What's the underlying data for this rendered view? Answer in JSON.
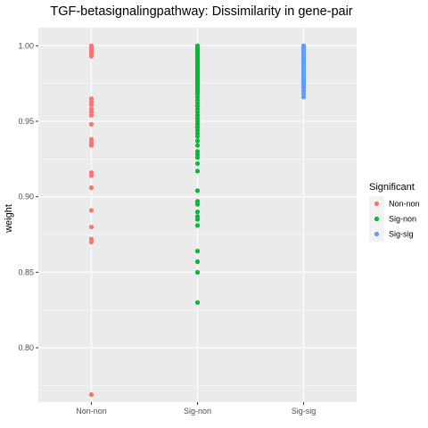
{
  "chart_data": {
    "type": "scatter",
    "title": "TGF-betasignalingpathway: Dissimilarity in gene-pair",
    "xlabel": "",
    "ylabel": "weight",
    "categories": [
      "Non-non",
      "Sig-non",
      "Sig-sig"
    ],
    "ylim": [
      0.764,
      1.012
    ],
    "yticks": [
      0.8,
      0.85,
      0.9,
      0.95,
      1.0
    ],
    "ytick_labels": [
      "0.80",
      "0.85",
      "0.90",
      "0.95",
      "1.00"
    ],
    "grid": true,
    "legend": {
      "title": "Significant",
      "position": "right",
      "entries": [
        "Non-non",
        "Sig-non",
        "Sig-sig"
      ]
    },
    "colors": {
      "Non-non": "#F8766D",
      "Sig-non": "#00BA38",
      "Sig-sig": "#619CFF",
      "panel": "#EBEBEB",
      "grid": "#FFFFFF"
    },
    "series": [
      {
        "name": "Non-non",
        "x": "Non-non",
        "values": [
          1.0,
          0.999,
          0.998,
          0.997,
          0.996,
          0.995,
          0.994,
          0.993,
          0.965,
          0.963,
          0.961,
          0.958,
          0.956,
          0.954,
          0.948,
          0.938,
          0.936,
          0.934,
          0.916,
          0.914,
          0.906,
          0.891,
          0.88,
          0.872,
          0.87,
          0.769
        ]
      },
      {
        "name": "Sig-non",
        "x": "Sig-non",
        "values": [
          1.0,
          0.999,
          0.998,
          0.997,
          0.996,
          0.995,
          0.994,
          0.993,
          0.992,
          0.991,
          0.99,
          0.989,
          0.988,
          0.987,
          0.986,
          0.985,
          0.984,
          0.983,
          0.982,
          0.981,
          0.98,
          0.979,
          0.978,
          0.977,
          0.976,
          0.975,
          0.974,
          0.973,
          0.972,
          0.971,
          0.97,
          0.969,
          0.968,
          0.966,
          0.964,
          0.962,
          0.96,
          0.958,
          0.956,
          0.954,
          0.952,
          0.95,
          0.948,
          0.946,
          0.944,
          0.942,
          0.94,
          0.937,
          0.934,
          0.93,
          0.928,
          0.926,
          0.922,
          0.917,
          0.904,
          0.897,
          0.895,
          0.89,
          0.887,
          0.885,
          0.881,
          0.864,
          0.857,
          0.85,
          0.83
        ]
      },
      {
        "name": "Sig-sig",
        "x": "Sig-sig",
        "values": [
          1.0,
          0.999,
          0.998,
          0.997,
          0.996,
          0.995,
          0.994,
          0.993,
          0.992,
          0.991,
          0.99,
          0.989,
          0.988,
          0.987,
          0.986,
          0.985,
          0.984,
          0.983,
          0.982,
          0.981,
          0.98,
          0.979,
          0.978,
          0.977,
          0.976,
          0.975,
          0.974,
          0.973,
          0.972,
          0.97,
          0.968,
          0.966
        ]
      }
    ]
  }
}
